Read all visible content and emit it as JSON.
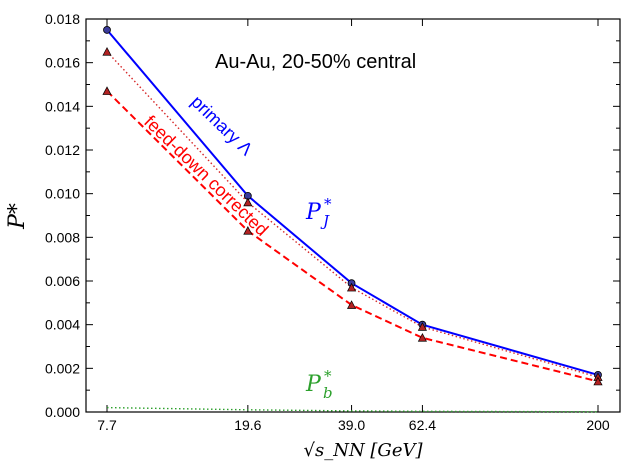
{
  "chart_data": {
    "type": "line",
    "x": [
      7.7,
      19.6,
      39.0,
      62.4,
      200
    ],
    "x_tick_labels": [
      "7.7",
      "19.6",
      "39.0",
      "62.4",
      "200"
    ],
    "x_scale": "log",
    "xlabel": "√s_NN  [GeV]",
    "ylabel": "P*",
    "ylim": [
      0,
      0.018
    ],
    "y_ticks": [
      0.0,
      0.002,
      0.004,
      0.006,
      0.008,
      0.01,
      0.012,
      0.014,
      0.016,
      0.018
    ],
    "y_tick_labels": [
      "0.000",
      "0.002",
      "0.004",
      "0.006",
      "0.008",
      "0.010",
      "0.012",
      "0.014",
      "0.016",
      "0.018"
    ],
    "grid": false,
    "series": [
      {
        "values": [
          0.0175,
          0.0099,
          0.0059,
          0.004,
          0.0017
        ],
        "color": "#0000ff",
        "style": "solid",
        "marker": "circle"
      },
      {
        "values": [
          0.0165,
          0.0096,
          0.0057,
          0.0039,
          0.0016
        ],
        "color": "#d62728",
        "style": "dotted",
        "marker": "triangle"
      },
      {
        "values": [
          0.0147,
          0.0083,
          0.0049,
          0.0034,
          0.0014
        ],
        "color": "#ff0000",
        "style": "dashed",
        "marker": "triangle"
      },
      {
        "values": [
          0.0002,
          0.0001,
          5e-05,
          3e-05,
          1e-05
        ],
        "color": "#2ca02c",
        "style": "dotted",
        "marker": "none"
      }
    ],
    "annotations": {
      "title": "Au-Au, 20-50% central",
      "primary": "primary Λ",
      "feed_down": "feed-down corrected",
      "pj_base": "P",
      "pj_sup": "*",
      "pj_sub": "J",
      "pb_base": "P",
      "pb_sup": "*",
      "pb_sub": "b"
    },
    "colors": {
      "primary": "#0000ff",
      "feed_down": "#ff0000",
      "pb": "#2ca02c"
    }
  }
}
